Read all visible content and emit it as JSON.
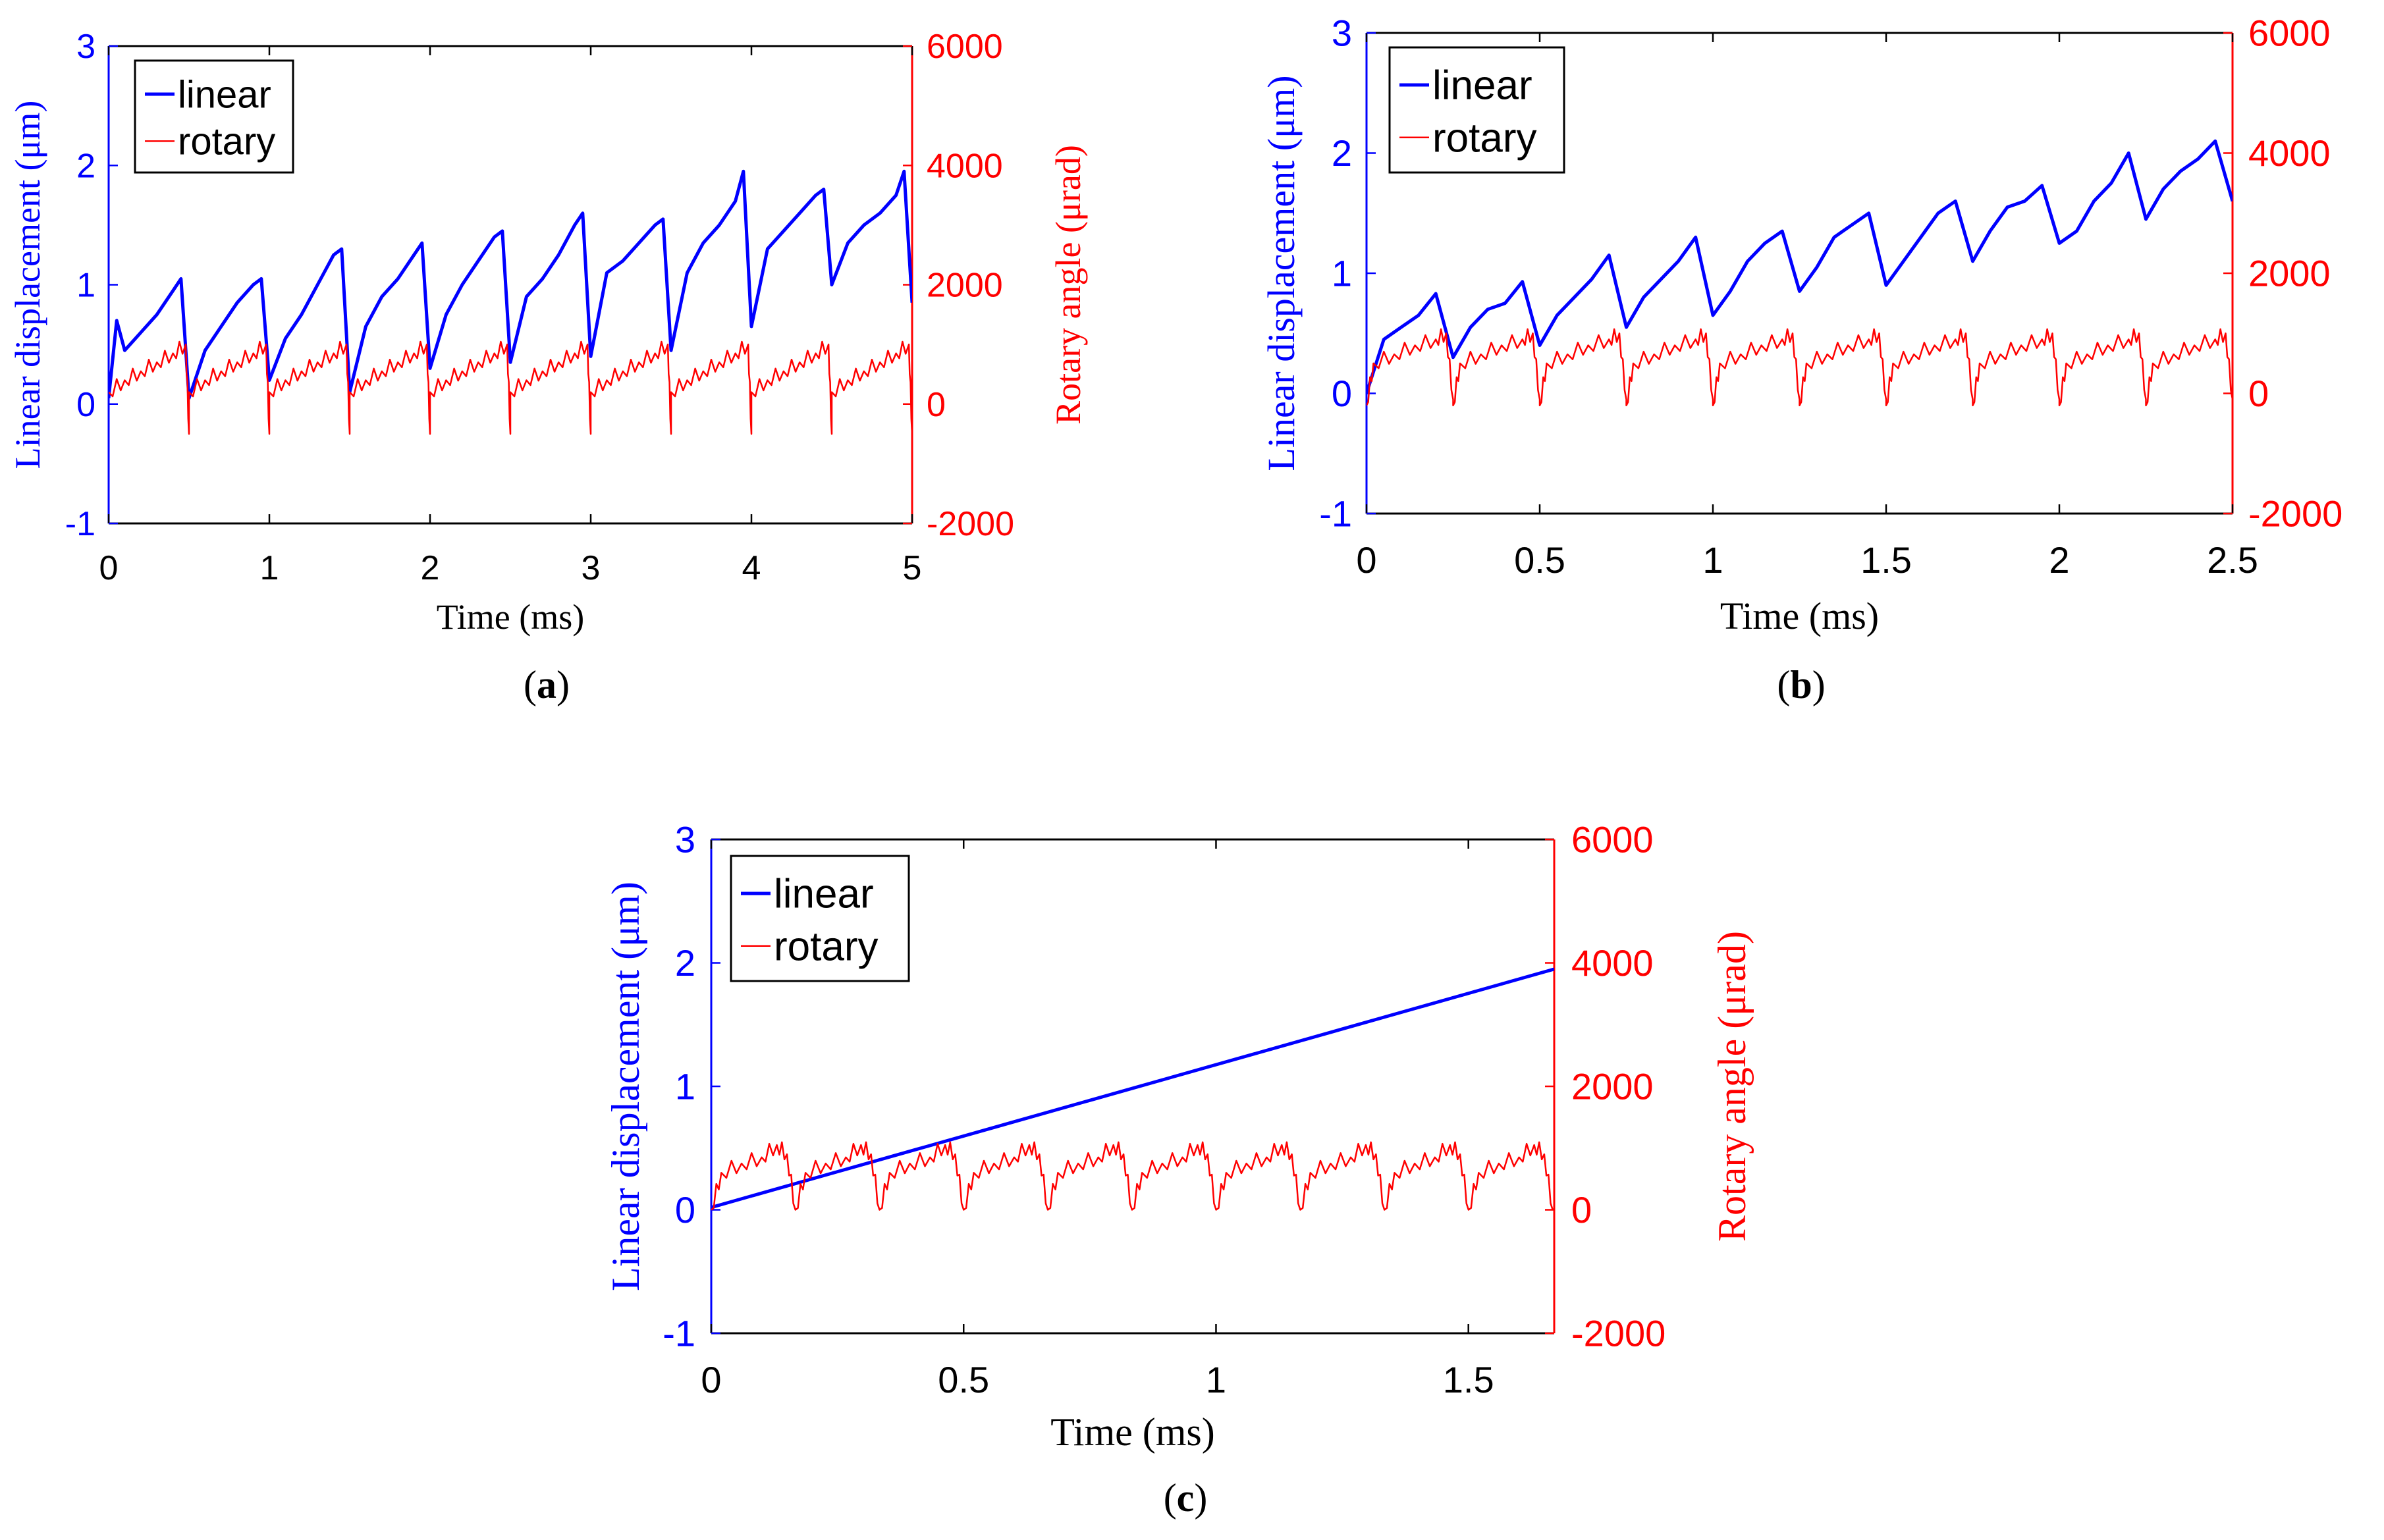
{
  "colors": {
    "linear": "#0000ff",
    "rotary": "#ff0000",
    "axis": "#000000"
  },
  "chart_data": [
    {
      "id": "a",
      "type": "line",
      "caption_letter": "a",
      "xlabel": "Time (ms)",
      "ylabel_left": "Linear displacement (μm)",
      "ylabel_right": "Rotary angle (μrad)",
      "xlim": [
        0,
        5
      ],
      "ylim_left": [
        -1,
        3
      ],
      "ylim_right": [
        -2000,
        6000
      ],
      "x_ticks": [
        "0",
        "1",
        "2",
        "3",
        "4",
        "5"
      ],
      "y_left_ticks": [
        "-1",
        "0",
        "1",
        "2",
        "3"
      ],
      "y_right_ticks": [
        "-2000",
        "0",
        "2000",
        "4000",
        "6000"
      ],
      "legend_position": "top-left",
      "series": [
        {
          "name": "linear",
          "axis": "left",
          "color": "#0000ff",
          "x": [
            0,
            0.05,
            0.1,
            0.2,
            0.3,
            0.4,
            0.45,
            0.5,
            0.6,
            0.7,
            0.8,
            0.9,
            0.95,
            1.0,
            1.1,
            1.2,
            1.3,
            1.4,
            1.45,
            1.5,
            1.6,
            1.7,
            1.8,
            1.9,
            1.95,
            2.0,
            2.1,
            2.2,
            2.3,
            2.4,
            2.45,
            2.5,
            2.6,
            2.7,
            2.8,
            2.9,
            2.95,
            3.0,
            3.1,
            3.2,
            3.3,
            3.4,
            3.45,
            3.5,
            3.6,
            3.7,
            3.8,
            3.9,
            3.95,
            4.0,
            4.1,
            4.2,
            4.3,
            4.4,
            4.45,
            4.5,
            4.6,
            4.7,
            4.8,
            4.9,
            4.95,
            5.0
          ],
          "y": [
            0.05,
            0.7,
            0.45,
            0.6,
            0.75,
            0.95,
            1.05,
            0.05,
            0.45,
            0.65,
            0.85,
            1.0,
            1.05,
            0.2,
            0.55,
            0.75,
            1.0,
            1.25,
            1.3,
            0.1,
            0.65,
            0.9,
            1.05,
            1.25,
            1.35,
            0.3,
            0.75,
            1.0,
            1.2,
            1.4,
            1.45,
            0.35,
            0.9,
            1.05,
            1.25,
            1.5,
            1.6,
            0.4,
            1.1,
            1.2,
            1.35,
            1.5,
            1.55,
            0.45,
            1.1,
            1.35,
            1.5,
            1.7,
            1.95,
            0.65,
            1.3,
            1.45,
            1.6,
            1.75,
            1.8,
            1.0,
            1.35,
            1.5,
            1.6,
            1.75,
            1.95,
            0.85
          ]
        },
        {
          "name": "rotary",
          "axis": "right",
          "color": "#ff0000",
          "period": 0.5,
          "x": [
            0,
            0.1,
            0.2,
            0.3,
            0.4,
            0.48,
            0.5
          ],
          "y": [
            200,
            400,
            550,
            700,
            850,
            1000,
            -500
          ]
        }
      ]
    },
    {
      "id": "b",
      "type": "line",
      "caption_letter": "b",
      "xlabel": "Time (ms)",
      "ylabel_left": "Linear displacement (μm)",
      "ylabel_right": "",
      "xlim": [
        0,
        2.5
      ],
      "ylim_left": [
        -1,
        3
      ],
      "ylim_right": [
        -2000,
        6000
      ],
      "x_ticks": [
        "0",
        "0.5",
        "1",
        "1.5",
        "2",
        "2.5"
      ],
      "y_left_ticks": [
        "-1",
        "0",
        "1",
        "2",
        "3"
      ],
      "y_right_ticks": [
        "-2000",
        "0",
        "2000",
        "4000",
        "6000"
      ],
      "legend_position": "top-left",
      "series": [
        {
          "name": "linear",
          "axis": "left",
          "color": "#0000ff",
          "x": [
            0,
            0.05,
            0.1,
            0.15,
            0.2,
            0.25,
            0.3,
            0.35,
            0.4,
            0.45,
            0.5,
            0.55,
            0.6,
            0.65,
            0.7,
            0.75,
            0.8,
            0.85,
            0.9,
            0.95,
            1.0,
            1.05,
            1.1,
            1.15,
            1.2,
            1.25,
            1.3,
            1.35,
            1.4,
            1.45,
            1.5,
            1.55,
            1.6,
            1.65,
            1.7,
            1.75,
            1.8,
            1.85,
            1.9,
            1.95,
            2.0,
            2.05,
            2.1,
            2.15,
            2.2,
            2.25,
            2.3,
            2.35,
            2.4,
            2.45,
            2.5
          ],
          "y": [
            0.0,
            0.45,
            0.55,
            0.65,
            0.83,
            0.3,
            0.55,
            0.7,
            0.75,
            0.93,
            0.4,
            0.65,
            0.8,
            0.95,
            1.15,
            0.55,
            0.8,
            0.95,
            1.1,
            1.3,
            0.65,
            0.85,
            1.1,
            1.25,
            1.35,
            0.85,
            1.05,
            1.3,
            1.4,
            1.5,
            0.9,
            1.1,
            1.3,
            1.5,
            1.6,
            1.1,
            1.35,
            1.55,
            1.6,
            1.73,
            1.25,
            1.35,
            1.6,
            1.75,
            2.0,
            1.45,
            1.7,
            1.85,
            1.95,
            2.1,
            1.6
          ]
        },
        {
          "name": "rotary",
          "axis": "right",
          "color": "#ff0000",
          "period": 0.25,
          "x": [
            0,
            0.02,
            0.08,
            0.14,
            0.2,
            0.23,
            0.25
          ],
          "y": [
            -200,
            500,
            650,
            800,
            900,
            1000,
            -100
          ]
        }
      ]
    },
    {
      "id": "c",
      "type": "line",
      "caption_letter": "c",
      "xlabel": "Time (ms)",
      "ylabel_left": "Linear displacement (μm)",
      "ylabel_right": "Rotary angle (μrad)",
      "xlim": [
        0,
        1.67
      ],
      "ylim_left": [
        -1,
        3
      ],
      "ylim_right": [
        -2000,
        6000
      ],
      "x_ticks": [
        "0",
        "0.5",
        "1",
        "1.5"
      ],
      "x_tick_values": [
        0,
        0.5,
        1,
        1.5
      ],
      "y_left_ticks": [
        "-1",
        "0",
        "1",
        "2",
        "3"
      ],
      "y_right_ticks": [
        "-2000",
        "0",
        "2000",
        "4000",
        "6000"
      ],
      "legend_position": "top-left",
      "series": [
        {
          "name": "linear",
          "axis": "left",
          "color": "#0000ff",
          "x": [
            0,
            1.67
          ],
          "y": [
            0.02,
            1.95
          ]
        },
        {
          "name": "rotary",
          "axis": "right",
          "color": "#ff0000",
          "period": 0.1667,
          "x": [
            0,
            0.02,
            0.06,
            0.1,
            0.13,
            0.15,
            0.1667
          ],
          "y": [
            0,
            600,
            750,
            850,
            1050,
            900,
            0
          ]
        }
      ]
    }
  ]
}
